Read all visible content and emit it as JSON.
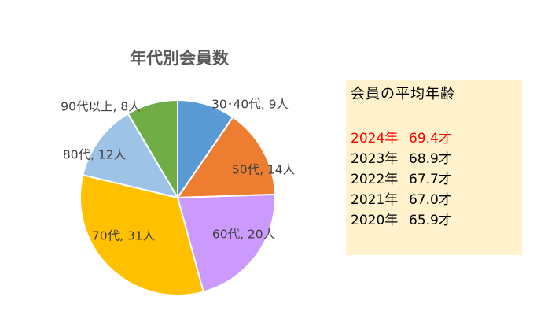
{
  "chart_data": {
    "type": "pie",
    "title": "年代別会員数",
    "start_angle_deg": 0,
    "direction": "clockwise",
    "slices": [
      {
        "label": "30･40代, 9人",
        "category": "30･40代",
        "value": 9,
        "color": "#5b9bd5"
      },
      {
        "label": "50代, 14人",
        "category": "50代",
        "value": 14,
        "color": "#ed7d31"
      },
      {
        "label": "60代, 20人",
        "category": "60代",
        "value": 20,
        "color": "#cc99ff"
      },
      {
        "label": "70代, 31人",
        "category": "70代",
        "value": 31,
        "color": "#ffc000"
      },
      {
        "label": "80代, 12人",
        "category": "80代",
        "value": 12,
        "color": "#9dc3e6"
      },
      {
        "label": "90代以上, 8人",
        "category": "90代以上",
        "value": 8,
        "color": "#70ad47"
      }
    ]
  },
  "info": {
    "title": "会員の平均年齢",
    "highlight_color": "#ff0000",
    "rows": [
      {
        "year": "2024年",
        "age": "69.4才",
        "highlight": true
      },
      {
        "year": "2023年",
        "age": "68.9才",
        "highlight": false
      },
      {
        "year": "2022年",
        "age": "67.7才",
        "highlight": false
      },
      {
        "year": "2021年",
        "age": "67.0才",
        "highlight": false
      },
      {
        "year": "2020年",
        "age": "65.9才",
        "highlight": false
      }
    ]
  }
}
